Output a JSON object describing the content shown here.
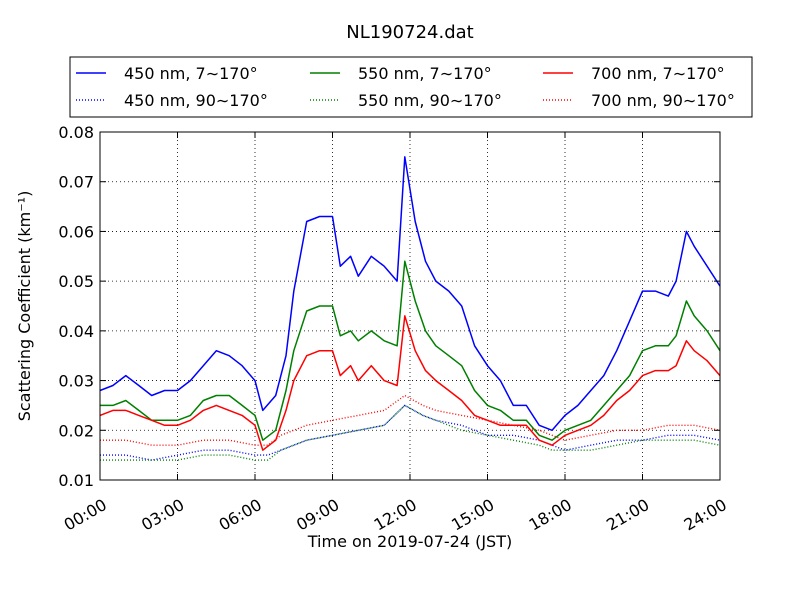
{
  "chart_data": {
    "type": "line",
    "title": "NL190724.dat",
    "xlabel": "Time on 2019-07-24 (JST)",
    "ylabel": "Scattering Coefficient (km⁻¹)",
    "xlim": [
      0,
      24
    ],
    "ylim": [
      0.01,
      0.08
    ],
    "grid": true,
    "legend_placement": "top",
    "x_ticks": [
      0,
      3,
      6,
      9,
      12,
      15,
      18,
      21,
      24
    ],
    "x_tick_labels": [
      "00:00",
      "03:00",
      "06:00",
      "09:00",
      "12:00",
      "15:00",
      "18:00",
      "21:00",
      "24:00"
    ],
    "y_ticks": [
      0.01,
      0.02,
      0.03,
      0.04,
      0.05,
      0.06,
      0.07,
      0.08
    ],
    "y_tick_labels": [
      "0.01",
      "0.02",
      "0.03",
      "0.04",
      "0.05",
      "0.06",
      "0.07",
      "0.08"
    ],
    "series": [
      {
        "name": "450 nm, 7∼170°",
        "color": "#0000ff",
        "style": "solid",
        "x": [
          0,
          0.5,
          1,
          1.5,
          2,
          2.5,
          3,
          3.5,
          4,
          4.5,
          5,
          5.5,
          6,
          6.3,
          6.8,
          7.2,
          7.5,
          8,
          8.5,
          9,
          9.3,
          9.7,
          10,
          10.5,
          11,
          11.5,
          11.8,
          12.2,
          12.6,
          13,
          13.5,
          14,
          14.5,
          15,
          15.5,
          16,
          16.5,
          17,
          17.5,
          18,
          18.5,
          19,
          19.5,
          20,
          20.5,
          21,
          21.5,
          22,
          22.3,
          22.7,
          23,
          23.5,
          24
        ],
        "y": [
          0.028,
          0.029,
          0.031,
          0.029,
          0.027,
          0.028,
          0.028,
          0.03,
          0.033,
          0.036,
          0.035,
          0.033,
          0.03,
          0.024,
          0.027,
          0.035,
          0.048,
          0.062,
          0.063,
          0.063,
          0.053,
          0.055,
          0.051,
          0.055,
          0.053,
          0.05,
          0.075,
          0.062,
          0.054,
          0.05,
          0.048,
          0.045,
          0.037,
          0.033,
          0.03,
          0.025,
          0.025,
          0.021,
          0.02,
          0.023,
          0.025,
          0.028,
          0.031,
          0.036,
          0.042,
          0.048,
          0.048,
          0.047,
          0.05,
          0.06,
          0.057,
          0.053,
          0.049
        ]
      },
      {
        "name": "550 nm, 7∼170°",
        "color": "#008000",
        "style": "solid",
        "x": [
          0,
          0.5,
          1,
          1.5,
          2,
          2.5,
          3,
          3.5,
          4,
          4.5,
          5,
          5.5,
          6,
          6.3,
          6.8,
          7.2,
          7.5,
          8,
          8.5,
          9,
          9.3,
          9.7,
          10,
          10.5,
          11,
          11.5,
          11.8,
          12.2,
          12.6,
          13,
          13.5,
          14,
          14.5,
          15,
          15.5,
          16,
          16.5,
          17,
          17.5,
          18,
          18.5,
          19,
          19.5,
          20,
          20.5,
          21,
          21.5,
          22,
          22.3,
          22.7,
          23,
          23.5,
          24
        ],
        "y": [
          0.025,
          0.025,
          0.026,
          0.024,
          0.022,
          0.022,
          0.022,
          0.023,
          0.026,
          0.027,
          0.027,
          0.025,
          0.023,
          0.018,
          0.02,
          0.028,
          0.036,
          0.044,
          0.045,
          0.045,
          0.039,
          0.04,
          0.038,
          0.04,
          0.038,
          0.037,
          0.054,
          0.046,
          0.04,
          0.037,
          0.035,
          0.033,
          0.028,
          0.025,
          0.024,
          0.022,
          0.022,
          0.019,
          0.018,
          0.02,
          0.021,
          0.022,
          0.025,
          0.028,
          0.031,
          0.036,
          0.037,
          0.037,
          0.039,
          0.046,
          0.043,
          0.04,
          0.036
        ]
      },
      {
        "name": "700 nm, 7∼170°",
        "color": "#ff0000",
        "style": "solid",
        "x": [
          0,
          0.5,
          1,
          1.5,
          2,
          2.5,
          3,
          3.5,
          4,
          4.5,
          5,
          5.5,
          6,
          6.3,
          6.8,
          7.2,
          7.5,
          8,
          8.5,
          9,
          9.3,
          9.7,
          10,
          10.5,
          11,
          11.5,
          11.8,
          12.2,
          12.6,
          13,
          13.5,
          14,
          14.5,
          15,
          15.5,
          16,
          16.5,
          17,
          17.5,
          18,
          18.5,
          19,
          19.5,
          20,
          20.5,
          21,
          21.5,
          22,
          22.3,
          22.7,
          23,
          23.5,
          24
        ],
        "y": [
          0.023,
          0.024,
          0.024,
          0.023,
          0.022,
          0.021,
          0.021,
          0.022,
          0.024,
          0.025,
          0.024,
          0.023,
          0.021,
          0.016,
          0.018,
          0.024,
          0.03,
          0.035,
          0.036,
          0.036,
          0.031,
          0.033,
          0.03,
          0.033,
          0.03,
          0.029,
          0.043,
          0.036,
          0.032,
          0.03,
          0.028,
          0.026,
          0.023,
          0.022,
          0.021,
          0.021,
          0.021,
          0.018,
          0.017,
          0.019,
          0.02,
          0.021,
          0.023,
          0.026,
          0.028,
          0.031,
          0.032,
          0.032,
          0.033,
          0.038,
          0.036,
          0.034,
          0.031
        ]
      },
      {
        "name": "450 nm, 90∼170°",
        "color": "#0000ff",
        "style": "dotted",
        "x": [
          0,
          1,
          2,
          3,
          4,
          5,
          6,
          6.5,
          7,
          8,
          9,
          10,
          11,
          11.8,
          12.5,
          13,
          14,
          15,
          16,
          17,
          17.5,
          18,
          19,
          20,
          21,
          22,
          23,
          24
        ],
        "y": [
          0.015,
          0.015,
          0.014,
          0.015,
          0.016,
          0.016,
          0.015,
          0.015,
          0.016,
          0.018,
          0.019,
          0.02,
          0.021,
          0.025,
          0.023,
          0.022,
          0.021,
          0.019,
          0.019,
          0.018,
          0.017,
          0.016,
          0.017,
          0.018,
          0.018,
          0.019,
          0.019,
          0.018
        ]
      },
      {
        "name": "550 nm, 90∼170°",
        "color": "#008000",
        "style": "dotted",
        "x": [
          0,
          1,
          2,
          3,
          4,
          5,
          6,
          6.5,
          7,
          8,
          9,
          10,
          11,
          11.8,
          12.5,
          13,
          14,
          15,
          16,
          17,
          17.5,
          18,
          19,
          20,
          21,
          22,
          23,
          24
        ],
        "y": [
          0.014,
          0.014,
          0.014,
          0.014,
          0.015,
          0.015,
          0.014,
          0.014,
          0.016,
          0.018,
          0.019,
          0.02,
          0.021,
          0.025,
          0.023,
          0.022,
          0.02,
          0.019,
          0.018,
          0.017,
          0.016,
          0.016,
          0.016,
          0.017,
          0.018,
          0.018,
          0.018,
          0.017
        ]
      },
      {
        "name": "700 nm, 90∼170°",
        "color": "#ff0000",
        "style": "dotted",
        "x": [
          0,
          1,
          2,
          3,
          4,
          5,
          6,
          6.5,
          7,
          8,
          9,
          10,
          11,
          11.8,
          12.5,
          13,
          14,
          15,
          16,
          17,
          17.5,
          18,
          19,
          20,
          21,
          22,
          23,
          24
        ],
        "y": [
          0.018,
          0.018,
          0.017,
          0.017,
          0.018,
          0.018,
          0.017,
          0.017,
          0.019,
          0.021,
          0.022,
          0.023,
          0.024,
          0.027,
          0.025,
          0.024,
          0.023,
          0.022,
          0.021,
          0.02,
          0.019,
          0.018,
          0.019,
          0.02,
          0.02,
          0.021,
          0.021,
          0.02
        ]
      }
    ]
  }
}
